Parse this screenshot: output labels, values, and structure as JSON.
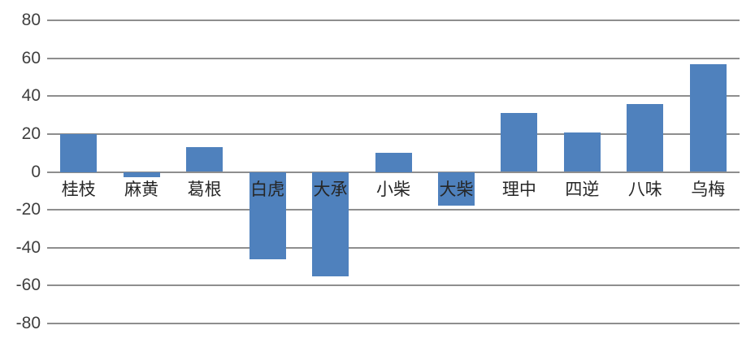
{
  "chart_data": {
    "type": "bar",
    "categories": [
      "桂枝",
      "麻黄",
      "葛根",
      "白虎",
      "大承",
      "小柴",
      "大柴",
      "理中",
      "四逆",
      "八味",
      "乌梅"
    ],
    "values": [
      20,
      -3,
      13,
      -46,
      -55,
      10,
      -18,
      31,
      21,
      36,
      57
    ],
    "title": "",
    "xlabel": "",
    "ylabel": "",
    "ylim": [
      -80,
      80
    ],
    "ytick_step": 20,
    "ytick_labels": [
      "80",
      "60",
      "40",
      "20",
      "0",
      "-20",
      "-40",
      "-60",
      "-80"
    ],
    "grid": true,
    "legend": "none",
    "colors": {
      "bar": "#4F81BD",
      "gridline": "#8E8E8E",
      "tick_text": "#3F3F3F",
      "category_text": "#262626",
      "background": "#FFFFFF"
    }
  }
}
